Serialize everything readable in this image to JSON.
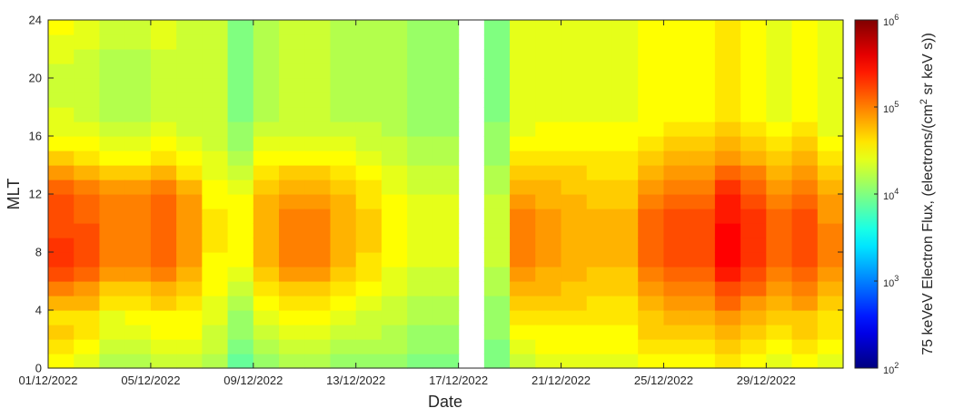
{
  "chart_data": {
    "type": "heatmap",
    "xlabel": "Date",
    "ylabel": "MLT",
    "x_range": [
      "01/12/2022",
      "31/12/2022"
    ],
    "xticks": [
      "01/12/2022",
      "05/12/2022",
      "09/12/2022",
      "13/12/2022",
      "17/12/2022",
      "21/12/2022",
      "25/12/2022",
      "29/12/2022"
    ],
    "ylim": [
      0,
      24
    ],
    "yticks": [
      0,
      4,
      8,
      12,
      16,
      20,
      24
    ],
    "mlt_bins": [
      0.5,
      1.5,
      2.5,
      3.5,
      4.5,
      5.5,
      6.5,
      7.5,
      8.5,
      9.5,
      10.5,
      11.5,
      12.5,
      13.5,
      14.5,
      15.5,
      16.5,
      17.5,
      18.5,
      19.5,
      20.5,
      21.5,
      22.5,
      23.5
    ],
    "days": [
      "01/12/2022",
      "02/12/2022",
      "03/12/2022",
      "04/12/2022",
      "05/12/2022",
      "06/12/2022",
      "07/12/2022",
      "08/12/2022",
      "09/12/2022",
      "10/12/2022",
      "11/12/2022",
      "12/12/2022",
      "13/12/2022",
      "14/12/2022",
      "15/12/2022",
      "16/12/2022",
      "17/12/2022",
      "18/12/2022",
      "19/12/2022",
      "20/12/2022",
      "21/12/2022",
      "22/12/2022",
      "23/12/2022",
      "24/12/2022",
      "25/12/2022",
      "26/12/2022",
      "27/12/2022",
      "28/12/2022",
      "29/12/2022",
      "30/12/2022",
      "31/12/2022"
    ],
    "log10_flux_by_day": [
      [
        4.5,
        4.6,
        4.7,
        4.6,
        4.8,
        5.0,
        5.2,
        5.3,
        5.3,
        5.2,
        5.2,
        5.2,
        5.1,
        4.9,
        4.7,
        4.5,
        4.4,
        4.4,
        4.3,
        4.3,
        4.3,
        4.4,
        4.4,
        4.5
      ],
      [
        4.4,
        4.5,
        4.6,
        4.6,
        4.8,
        4.9,
        5.1,
        5.2,
        5.2,
        5.2,
        5.1,
        5.1,
        5.0,
        4.8,
        4.6,
        4.5,
        4.4,
        4.3,
        4.3,
        4.3,
        4.3,
        4.3,
        4.4,
        4.4
      ],
      [
        4.2,
        4.3,
        4.4,
        4.4,
        4.6,
        4.7,
        4.9,
        5.0,
        5.0,
        5.0,
        5.0,
        5.0,
        4.9,
        4.7,
        4.5,
        4.4,
        4.3,
        4.2,
        4.2,
        4.2,
        4.2,
        4.2,
        4.3,
        4.3
      ],
      [
        4.2,
        4.3,
        4.4,
        4.5,
        4.6,
        4.7,
        4.9,
        5.0,
        5.0,
        5.0,
        5.0,
        5.0,
        4.9,
        4.7,
        4.5,
        4.4,
        4.3,
        4.2,
        4.2,
        4.2,
        4.2,
        4.2,
        4.3,
        4.3
      ],
      [
        4.3,
        4.4,
        4.5,
        4.5,
        4.7,
        4.8,
        5.0,
        5.1,
        5.1,
        5.1,
        5.1,
        5.1,
        5.0,
        4.8,
        4.6,
        4.5,
        4.4,
        4.3,
        4.3,
        4.3,
        4.3,
        4.3,
        4.4,
        4.4
      ],
      [
        4.3,
        4.4,
        4.5,
        4.5,
        4.6,
        4.7,
        4.8,
        4.9,
        4.9,
        4.9,
        4.9,
        4.9,
        4.8,
        4.6,
        4.5,
        4.4,
        4.3,
        4.3,
        4.3,
        4.3,
        4.3,
        4.3,
        4.3,
        4.3
      ],
      [
        4.2,
        4.3,
        4.3,
        4.4,
        4.4,
        4.5,
        4.5,
        4.5,
        4.6,
        4.6,
        4.6,
        4.5,
        4.5,
        4.4,
        4.4,
        4.3,
        4.3,
        4.3,
        4.3,
        4.3,
        4.3,
        4.3,
        4.3,
        4.3
      ],
      [
        3.9,
        4.0,
        4.1,
        4.1,
        4.2,
        4.3,
        4.4,
        4.5,
        4.5,
        4.5,
        4.5,
        4.5,
        4.4,
        4.3,
        4.2,
        4.1,
        4.1,
        4.0,
        4.0,
        4.0,
        4.0,
        4.0,
        4.0,
        4.0
      ],
      [
        4.1,
        4.2,
        4.3,
        4.4,
        4.5,
        4.6,
        4.7,
        4.8,
        4.8,
        4.8,
        4.8,
        4.8,
        4.7,
        4.6,
        4.5,
        4.4,
        4.3,
        4.2,
        4.2,
        4.2,
        4.2,
        4.2,
        4.2,
        4.2
      ],
      [
        4.2,
        4.3,
        4.4,
        4.5,
        4.6,
        4.7,
        4.9,
        5.0,
        5.0,
        5.0,
        5.0,
        4.9,
        4.8,
        4.7,
        4.5,
        4.4,
        4.3,
        4.3,
        4.3,
        4.3,
        4.3,
        4.3,
        4.3,
        4.3
      ],
      [
        4.2,
        4.3,
        4.4,
        4.5,
        4.6,
        4.7,
        4.9,
        5.0,
        5.0,
        5.0,
        5.0,
        4.9,
        4.8,
        4.7,
        4.5,
        4.4,
        4.3,
        4.3,
        4.3,
        4.3,
        4.3,
        4.3,
        4.3,
        4.3
      ],
      [
        4.1,
        4.2,
        4.3,
        4.4,
        4.5,
        4.6,
        4.7,
        4.8,
        4.8,
        4.8,
        4.8,
        4.8,
        4.7,
        4.6,
        4.5,
        4.4,
        4.3,
        4.2,
        4.2,
        4.2,
        4.2,
        4.2,
        4.2,
        4.2
      ],
      [
        4.1,
        4.2,
        4.3,
        4.3,
        4.4,
        4.5,
        4.6,
        4.6,
        4.7,
        4.7,
        4.7,
        4.6,
        4.6,
        4.5,
        4.4,
        4.3,
        4.3,
        4.2,
        4.2,
        4.2,
        4.2,
        4.2,
        4.2,
        4.2
      ],
      [
        4.1,
        4.2,
        4.2,
        4.3,
        4.3,
        4.4,
        4.4,
        4.5,
        4.5,
        4.5,
        4.5,
        4.5,
        4.4,
        4.4,
        4.3,
        4.3,
        4.2,
        4.2,
        4.2,
        4.2,
        4.2,
        4.2,
        4.2,
        4.2
      ],
      [
        4.0,
        4.1,
        4.1,
        4.2,
        4.2,
        4.3,
        4.3,
        4.4,
        4.4,
        4.4,
        4.4,
        4.4,
        4.3,
        4.3,
        4.2,
        4.2,
        4.1,
        4.1,
        4.1,
        4.1,
        4.1,
        4.1,
        4.1,
        4.1
      ],
      [
        4.0,
        4.1,
        4.1,
        4.2,
        4.2,
        4.3,
        4.3,
        4.4,
        4.4,
        4.4,
        4.4,
        4.4,
        4.3,
        4.3,
        4.2,
        4.2,
        4.1,
        4.1,
        4.1,
        4.1,
        4.1,
        4.1,
        4.1,
        4.1
      ],
      [
        null,
        null,
        null,
        null,
        null,
        null,
        null,
        null,
        null,
        null,
        null,
        null,
        null,
        null,
        null,
        null,
        null,
        null,
        null,
        null,
        null,
        null,
        null,
        null
      ],
      [
        4.0,
        4.0,
        4.1,
        4.1,
        4.1,
        4.2,
        4.2,
        4.3,
        4.3,
        4.3,
        4.3,
        4.3,
        4.2,
        4.2,
        4.1,
        4.1,
        4.1,
        4.0,
        4.0,
        4.0,
        4.0,
        4.0,
        4.0,
        4.0
      ],
      [
        4.3,
        4.4,
        4.5,
        4.6,
        4.7,
        4.8,
        4.9,
        5.0,
        5.0,
        5.0,
        5.0,
        4.9,
        4.8,
        4.7,
        4.6,
        4.5,
        4.4,
        4.4,
        4.4,
        4.4,
        4.4,
        4.4,
        4.4,
        4.4
      ],
      [
        4.4,
        4.5,
        4.5,
        4.6,
        4.7,
        4.8,
        4.8,
        4.9,
        4.9,
        4.9,
        4.9,
        4.8,
        4.8,
        4.7,
        4.6,
        4.5,
        4.5,
        4.4,
        4.4,
        4.4,
        4.4,
        4.4,
        4.4,
        4.4
      ],
      [
        4.4,
        4.5,
        4.5,
        4.6,
        4.7,
        4.7,
        4.8,
        4.8,
        4.8,
        4.8,
        4.8,
        4.8,
        4.7,
        4.7,
        4.6,
        4.5,
        4.5,
        4.4,
        4.4,
        4.4,
        4.4,
        4.4,
        4.4,
        4.4
      ],
      [
        4.4,
        4.5,
        4.5,
        4.6,
        4.6,
        4.7,
        4.7,
        4.8,
        4.8,
        4.8,
        4.8,
        4.7,
        4.7,
        4.6,
        4.6,
        4.5,
        4.5,
        4.4,
        4.4,
        4.4,
        4.4,
        4.4,
        4.4,
        4.4
      ],
      [
        4.4,
        4.5,
        4.5,
        4.6,
        4.6,
        4.7,
        4.7,
        4.8,
        4.8,
        4.8,
        4.8,
        4.7,
        4.7,
        4.6,
        4.6,
        4.5,
        4.5,
        4.4,
        4.4,
        4.4,
        4.4,
        4.4,
        4.4,
        4.4
      ],
      [
        4.5,
        4.6,
        4.7,
        4.7,
        4.8,
        4.9,
        5.0,
        5.1,
        5.1,
        5.1,
        5.1,
        5.0,
        4.9,
        4.8,
        4.7,
        4.6,
        4.5,
        4.5,
        4.5,
        4.5,
        4.5,
        4.5,
        4.5,
        4.5
      ],
      [
        4.5,
        4.6,
        4.7,
        4.8,
        4.9,
        5.0,
        5.1,
        5.2,
        5.2,
        5.2,
        5.2,
        5.1,
        5.0,
        4.9,
        4.8,
        4.7,
        4.6,
        4.5,
        4.5,
        4.5,
        4.5,
        4.5,
        4.5,
        4.5
      ],
      [
        4.5,
        4.6,
        4.7,
        4.8,
        4.9,
        5.0,
        5.1,
        5.2,
        5.2,
        5.2,
        5.2,
        5.1,
        5.0,
        4.9,
        4.8,
        4.7,
        4.6,
        4.5,
        4.5,
        4.5,
        4.5,
        4.5,
        4.5,
        4.5
      ],
      [
        4.6,
        4.7,
        4.8,
        4.9,
        5.1,
        5.2,
        5.4,
        5.5,
        5.5,
        5.5,
        5.4,
        5.4,
        5.3,
        5.1,
        4.9,
        4.8,
        4.7,
        4.6,
        4.6,
        4.6,
        4.6,
        4.6,
        4.6,
        4.6
      ],
      [
        4.5,
        4.6,
        4.7,
        4.8,
        4.9,
        5.1,
        5.2,
        5.3,
        5.3,
        5.3,
        5.3,
        5.2,
        5.1,
        5.0,
        4.8,
        4.7,
        4.6,
        4.5,
        4.5,
        4.5,
        4.5,
        4.5,
        4.5,
        4.5
      ],
      [
        4.4,
        4.5,
        4.6,
        4.7,
        4.8,
        4.9,
        5.0,
        5.1,
        5.1,
        5.1,
        5.1,
        5.0,
        4.9,
        4.8,
        4.7,
        4.6,
        4.5,
        4.4,
        4.4,
        4.4,
        4.4,
        4.4,
        4.4,
        4.4
      ],
      [
        4.5,
        4.6,
        4.7,
        4.7,
        4.9,
        5.0,
        5.1,
        5.2,
        5.2,
        5.2,
        5.2,
        5.1,
        5.0,
        4.9,
        4.8,
        4.7,
        4.6,
        4.5,
        4.5,
        4.5,
        4.5,
        4.5,
        4.5,
        4.5
      ],
      [
        4.4,
        4.5,
        4.6,
        4.6,
        4.7,
        4.8,
        4.9,
        5.0,
        5.0,
        5.0,
        4.9,
        4.9,
        4.8,
        4.7,
        4.6,
        4.5,
        4.4,
        4.4,
        4.4,
        4.4,
        4.4,
        4.4,
        4.4,
        4.4
      ]
    ],
    "colorbar": {
      "colormap": "jet",
      "scale": "log",
      "range": [
        100,
        1000000
      ],
      "tick_bases": [
        "10",
        "10",
        "10",
        "10",
        "10"
      ],
      "tick_exponents": [
        "2",
        "3",
        "4",
        "5",
        "6"
      ],
      "label_parts": [
        "75 keVeV Electron Flux, (electrons/(cm",
        "2",
        " sr keV s))"
      ]
    },
    "grid": false,
    "legend": "none"
  }
}
